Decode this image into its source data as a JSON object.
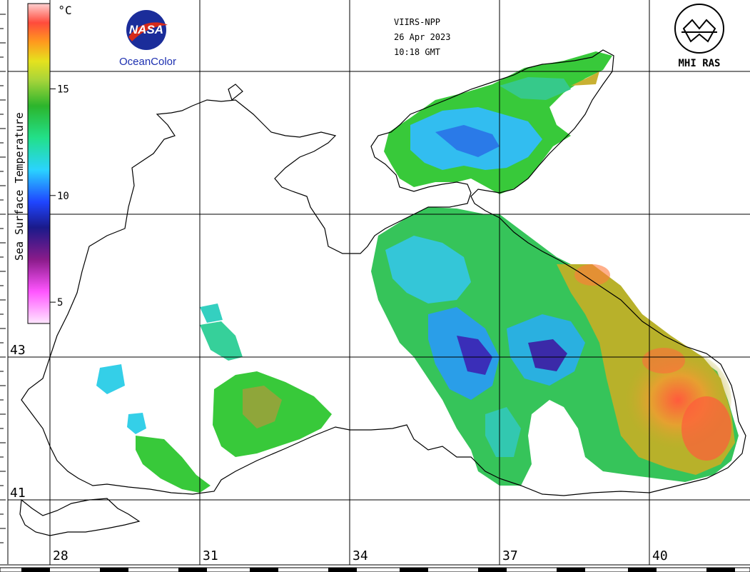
{
  "header": {
    "satellite": "VIIRS-NPP",
    "date": "26 Apr 2023",
    "time": "10:18 GMT"
  },
  "logos": {
    "nasa_text": "NASA",
    "left_caption": "OceanColor",
    "right_caption": "MHI RAS"
  },
  "colorbar": {
    "title": "Sea Surface Temperature",
    "unit": "°C",
    "ticks": [
      "5",
      "10",
      "15"
    ],
    "range": [
      4,
      19
    ],
    "tick_values": [
      5,
      10,
      15
    ]
  },
  "axes": {
    "lat_labels": [
      "43",
      "41"
    ],
    "lon_labels": [
      "28",
      "31",
      "34",
      "37",
      "40"
    ]
  },
  "colors": {
    "coast": "#000000",
    "grid": "#000000",
    "cold": "#1f6fe0",
    "cool": "#32d3ff",
    "mid": "#38c93a",
    "warm": "#b8b12a",
    "hot": "#ff5b3c"
  }
}
